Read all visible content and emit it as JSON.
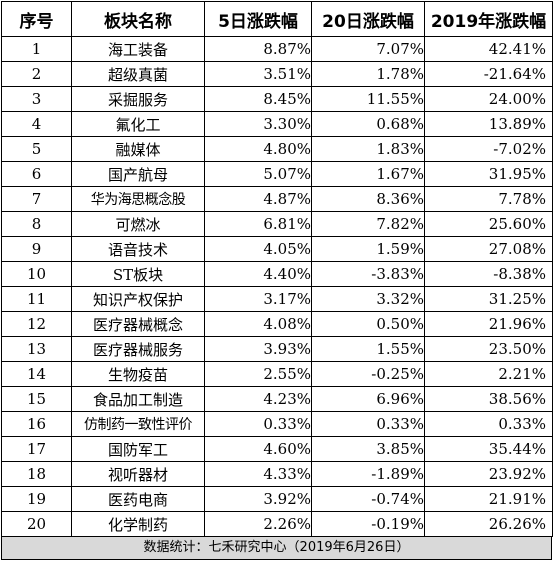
{
  "table": {
    "headers": [
      "序号",
      "板块名称",
      "5日涨跌幅",
      "20日涨跌幅",
      "2019年涨跌幅"
    ],
    "rows": [
      [
        "1",
        "海工装备",
        "8.87%",
        "7.07%",
        "42.41%"
      ],
      [
        "2",
        "超级真菌",
        "3.51%",
        "1.78%",
        "-21.64%"
      ],
      [
        "3",
        "采掘服务",
        "8.45%",
        "11.55%",
        "24.00%"
      ],
      [
        "4",
        "氟化工",
        "3.30%",
        "0.68%",
        "13.89%"
      ],
      [
        "5",
        "融媒体",
        "4.80%",
        "1.83%",
        "-7.02%"
      ],
      [
        "6",
        "国产航母",
        "5.07%",
        "1.67%",
        "31.95%"
      ],
      [
        "7",
        "华为海思概念股",
        "4.87%",
        "8.36%",
        "7.78%"
      ],
      [
        "8",
        "可燃冰",
        "6.81%",
        "7.82%",
        "25.60%"
      ],
      [
        "9",
        "语音技术",
        "4.05%",
        "1.59%",
        "27.08%"
      ],
      [
        "10",
        "ST板块",
        "4.40%",
        "-3.83%",
        "-8.38%"
      ],
      [
        "11",
        "知识产权保护",
        "3.17%",
        "3.32%",
        "31.25%"
      ],
      [
        "12",
        "医疗器械概念",
        "4.08%",
        "0.50%",
        "21.96%"
      ],
      [
        "13",
        "医疗器械服务",
        "3.93%",
        "1.55%",
        "23.50%"
      ],
      [
        "14",
        "生物疫苗",
        "2.55%",
        "-0.25%",
        "2.21%"
      ],
      [
        "15",
        "食品加工制造",
        "4.23%",
        "6.96%",
        "38.56%"
      ],
      [
        "16",
        "仿制药一致性评价",
        "0.33%",
        "0.33%",
        "0.33%"
      ],
      [
        "17",
        "国防军工",
        "4.60%",
        "3.85%",
        "35.44%"
      ],
      [
        "18",
        "视听器材",
        "4.33%",
        "-1.89%",
        "23.92%"
      ],
      [
        "19",
        "医药电商",
        "3.92%",
        "-0.74%",
        "21.91%"
      ],
      [
        "20",
        "化学制药",
        "2.26%",
        "-0.19%",
        "26.26%"
      ]
    ]
  },
  "footer": {
    "text": "数据统计：七禾研究中心（2019年6月26日）"
  },
  "colors": {
    "border": "#000000",
    "footer_background": "#d9d9d9",
    "text": "#000000"
  }
}
